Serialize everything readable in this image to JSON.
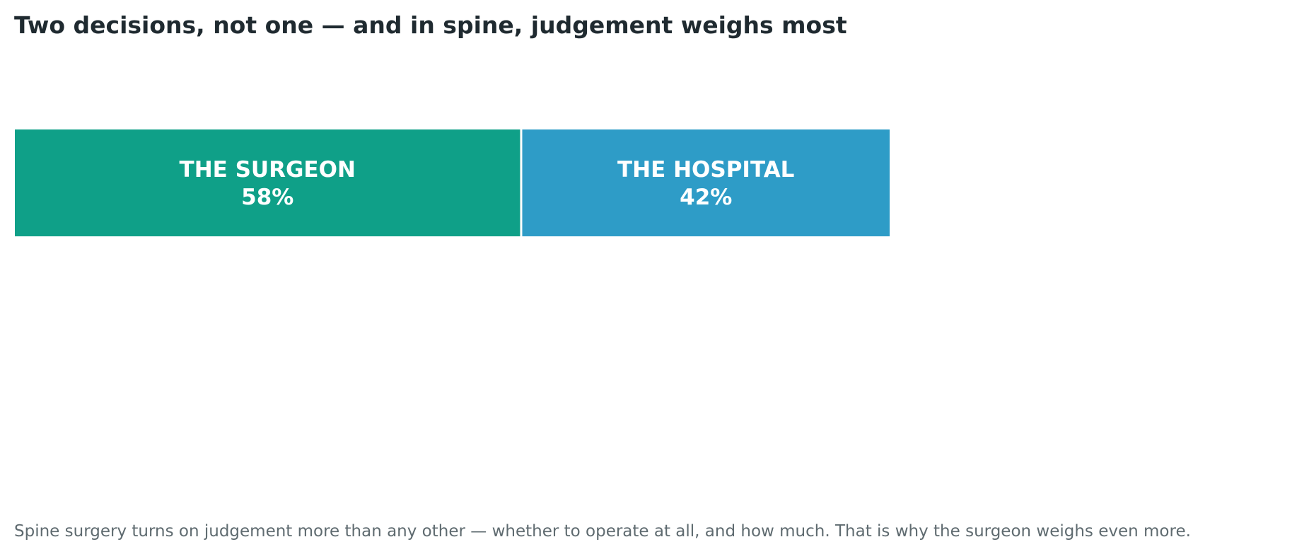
{
  "title": "Two decisions, not one — and in spine, judgement weighs most",
  "caption": "Spine surgery turns on judgement more than any other — whether to operate at all, and how much. That is why the surgeon weighs even more.",
  "chart_data": {
    "type": "bar",
    "orientation": "horizontal-stacked",
    "categories": [
      "THE SURGEON",
      "THE HOSPITAL"
    ],
    "values": [
      58,
      42
    ],
    "value_labels": [
      "58%",
      "42%"
    ],
    "colors": [
      "#0fa088",
      "#2e9cc7"
    ],
    "text_color": "#ffffff",
    "unit": "%"
  }
}
